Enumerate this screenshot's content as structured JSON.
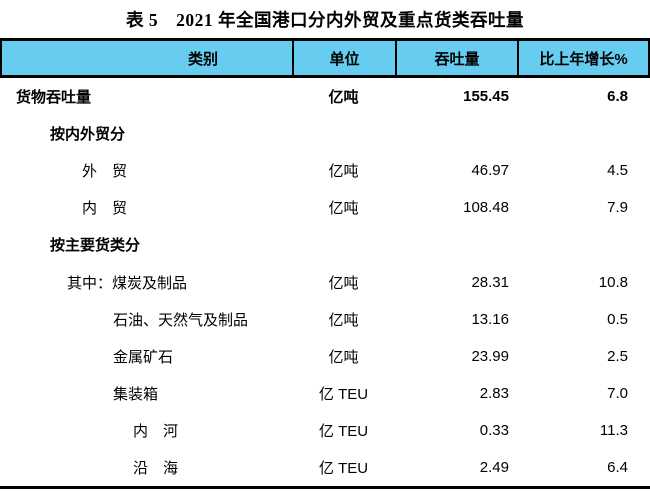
{
  "title": "表 5　2021 年全国港口分内外贸及重点货类吞吐量",
  "table": {
    "columns": [
      "类别",
      "单位",
      "吞吐量",
      "比上年增长%"
    ],
    "rows": [
      {
        "category": "货物吞吐量",
        "unit": "亿吨",
        "throughput": "155.45",
        "growth": "6.8",
        "bold": true,
        "indent": 0
      },
      {
        "category": "按内外贸分",
        "unit": "",
        "throughput": "",
        "growth": "",
        "bold": true,
        "indent": 1
      },
      {
        "category": "外　贸",
        "unit": "亿吨",
        "throughput": "46.97",
        "growth": "4.5",
        "bold": false,
        "indent": 2
      },
      {
        "category": "内　贸",
        "unit": "亿吨",
        "throughput": "108.48",
        "growth": "7.9",
        "bold": false,
        "indent": 2
      },
      {
        "category": "按主要货类分",
        "unit": "",
        "throughput": "",
        "growth": "",
        "bold": true,
        "indent": 1
      },
      {
        "category": "其中：煤炭及制品",
        "unit": "亿吨",
        "throughput": "28.31",
        "growth": "10.8",
        "bold": false,
        "indent": 3
      },
      {
        "category": "石油、天然气及制品",
        "unit": "亿吨",
        "throughput": "13.16",
        "growth": "0.5",
        "bold": false,
        "indent": 4
      },
      {
        "category": "金属矿石",
        "unit": "亿吨",
        "throughput": "23.99",
        "growth": "2.5",
        "bold": false,
        "indent": 4
      },
      {
        "category": "集装箱",
        "unit": "亿 TEU",
        "throughput": "2.83",
        "growth": "7.0",
        "bold": false,
        "indent": 4
      },
      {
        "category": "内　河",
        "unit": "亿 TEU",
        "throughput": "0.33",
        "growth": "11.3",
        "bold": false,
        "indent": 5
      },
      {
        "category": "沿　海",
        "unit": "亿 TEU",
        "throughput": "2.49",
        "growth": "6.4",
        "bold": false,
        "indent": 5
      }
    ]
  },
  "colors": {
    "header_bg": "#66CCF0",
    "border": "#000000"
  }
}
